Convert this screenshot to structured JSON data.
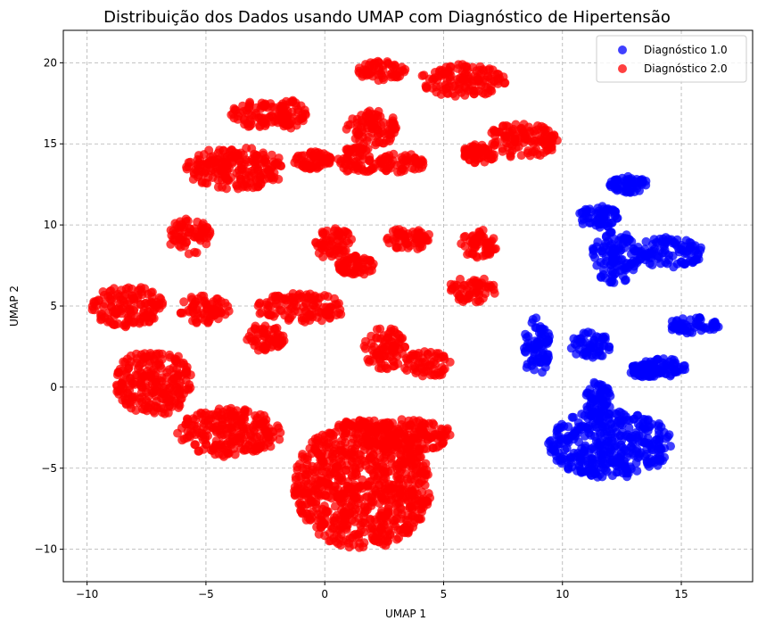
{
  "chart_data": {
    "type": "scatter",
    "title": "Distribuição dos Dados usando UMAP com Diagnóstico de Hipertensão",
    "xlabel": "UMAP 1",
    "ylabel": "UMAP 2",
    "xlim": [
      -11.0,
      18.0
    ],
    "ylim": [
      -12.0,
      22.0
    ],
    "xticks": [
      -10,
      -5,
      0,
      5,
      10,
      15
    ],
    "yticks": [
      -10,
      -5,
      0,
      5,
      10,
      15,
      20
    ],
    "grid": true,
    "legend_position": "top-right",
    "series": [
      {
        "name": "Diagnóstico 1.0",
        "color": "#0000ff",
        "clusters": [
          {
            "cx": 12.0,
            "cy": -3.5,
            "rx": 2.6,
            "ry": 2.1
          },
          {
            "cx": 11.5,
            "cy": -0.8,
            "rx": 0.6,
            "ry": 1.2
          },
          {
            "cx": 15.5,
            "cy": 3.8,
            "rx": 1.1,
            "ry": 0.5
          },
          {
            "cx": 14.2,
            "cy": 1.2,
            "rx": 1.0,
            "ry": 0.6
          },
          {
            "cx": 8.9,
            "cy": 2.5,
            "rx": 0.6,
            "ry": 1.8
          },
          {
            "cx": 11.2,
            "cy": 2.6,
            "rx": 0.9,
            "ry": 0.8
          },
          {
            "cx": 13.5,
            "cy": 1.0,
            "rx": 0.8,
            "ry": 0.4
          },
          {
            "cx": 12.2,
            "cy": 8.0,
            "rx": 1.0,
            "ry": 1.6
          },
          {
            "cx": 14.5,
            "cy": 8.3,
            "rx": 1.4,
            "ry": 1.0
          },
          {
            "cx": 11.5,
            "cy": 10.5,
            "rx": 0.9,
            "ry": 0.7
          },
          {
            "cx": 12.8,
            "cy": 12.5,
            "rx": 0.8,
            "ry": 0.5
          }
        ]
      },
      {
        "name": "Diagnóstico 2.0",
        "color": "#ff0000",
        "clusters": [
          {
            "cx": 1.6,
            "cy": -6.0,
            "rx": 2.9,
            "ry": 4.0
          },
          {
            "cx": 3.4,
            "cy": -3.0,
            "rx": 2.0,
            "ry": 1.0
          },
          {
            "cx": -4.0,
            "cy": -2.8,
            "rx": 2.2,
            "ry": 1.5
          },
          {
            "cx": -7.2,
            "cy": 0.3,
            "rx": 1.6,
            "ry": 2.1
          },
          {
            "cx": -8.3,
            "cy": 5.0,
            "rx": 1.5,
            "ry": 1.3
          },
          {
            "cx": -5.0,
            "cy": 4.8,
            "rx": 1.1,
            "ry": 0.9
          },
          {
            "cx": -5.7,
            "cy": 9.3,
            "rx": 0.9,
            "ry": 1.1
          },
          {
            "cx": -1.0,
            "cy": 4.9,
            "rx": 1.9,
            "ry": 0.9
          },
          {
            "cx": -2.5,
            "cy": 3.0,
            "rx": 0.8,
            "ry": 0.9
          },
          {
            "cx": 2.5,
            "cy": 2.4,
            "rx": 0.9,
            "ry": 1.3
          },
          {
            "cx": 4.3,
            "cy": 1.4,
            "rx": 1.0,
            "ry": 0.8
          },
          {
            "cx": 0.4,
            "cy": 8.8,
            "rx": 0.8,
            "ry": 1.0
          },
          {
            "cx": 1.3,
            "cy": 7.5,
            "rx": 0.8,
            "ry": 0.6
          },
          {
            "cx": 3.5,
            "cy": 9.1,
            "rx": 1.0,
            "ry": 0.7
          },
          {
            "cx": 6.5,
            "cy": 8.8,
            "rx": 0.8,
            "ry": 0.9
          },
          {
            "cx": 6.2,
            "cy": 6.0,
            "rx": 1.0,
            "ry": 0.8
          },
          {
            "cx": -3.8,
            "cy": 13.5,
            "rx": 2.2,
            "ry": 1.3
          },
          {
            "cx": -2.8,
            "cy": 16.8,
            "rx": 1.2,
            "ry": 0.8
          },
          {
            "cx": -1.4,
            "cy": 16.8,
            "rx": 0.6,
            "ry": 0.9
          },
          {
            "cx": -0.5,
            "cy": 14.0,
            "rx": 0.8,
            "ry": 0.6
          },
          {
            "cx": 1.4,
            "cy": 14.0,
            "rx": 0.9,
            "ry": 0.8
          },
          {
            "cx": 2.0,
            "cy": 16.0,
            "rx": 1.1,
            "ry": 1.1
          },
          {
            "cx": 3.2,
            "cy": 13.8,
            "rx": 1.0,
            "ry": 0.6
          },
          {
            "cx": 2.4,
            "cy": 19.5,
            "rx": 1.0,
            "ry": 0.6
          },
          {
            "cx": 5.8,
            "cy": 18.9,
            "rx": 1.8,
            "ry": 1.0
          },
          {
            "cx": 8.3,
            "cy": 15.2,
            "rx": 1.5,
            "ry": 1.1
          },
          {
            "cx": 6.5,
            "cy": 14.4,
            "rx": 0.7,
            "ry": 0.6
          }
        ]
      }
    ]
  }
}
